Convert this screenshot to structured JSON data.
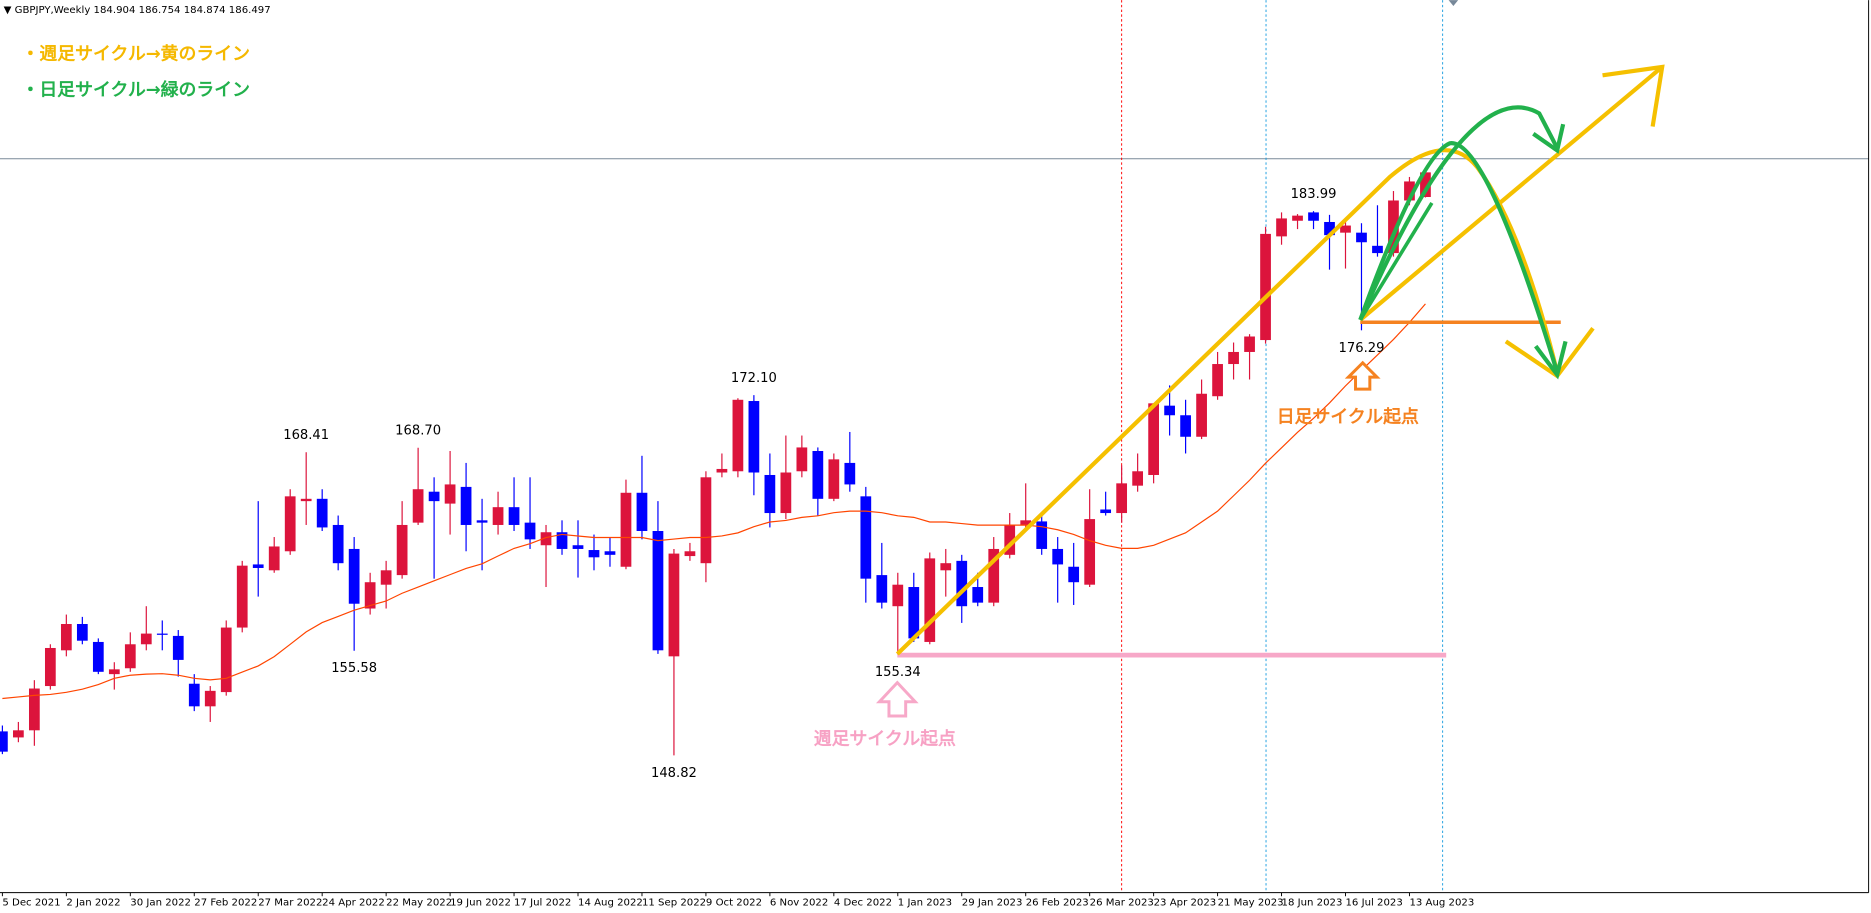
{
  "chart_data": {
    "type": "candlestick",
    "symbol": "GBPJPY,Weekly",
    "categories": [
      "5 Dec 2021",
      null,
      null,
      null,
      "2 Jan 2022",
      null,
      null,
      null,
      "30 Jan 2022",
      null,
      null,
      null,
      "27 Feb 2022",
      null,
      null,
      null,
      "27 Mar 2022",
      null,
      null,
      null,
      "24 Apr 2022",
      null,
      null,
      null,
      "22 May 2022",
      null,
      null,
      null,
      "19 Jun 2022",
      null,
      null,
      null,
      "17 Jul 2022",
      null,
      null,
      null,
      "14 Aug 2022",
      null,
      null,
      null,
      "11 Sep 2022",
      null,
      null,
      null,
      "9 Oct 2022",
      null,
      null,
      null,
      "6 Nov 2022",
      null,
      null,
      null,
      "4 Dec 2022",
      null,
      null,
      null,
      "1 Jan 2023",
      null,
      null,
      null,
      "29 Jan 2023",
      null,
      null,
      null,
      "26 Feb 2023",
      null,
      null,
      null,
      "26 Mar 2023",
      null,
      null,
      null,
      "23 Apr 2023",
      null,
      null,
      null,
      "21 May 2023",
      null,
      null,
      null,
      "18 Jun 2023",
      null,
      null,
      null,
      "16 Jul 2023",
      null,
      null,
      null,
      "13 Aug 2023",
      null
    ],
    "open": [
      150.37,
      149.98,
      150.44,
      153.3,
      155.61,
      157.31,
      156.15,
      154.07,
      154.45,
      156.0,
      156.69,
      156.54,
      153.45,
      151.99,
      152.91,
      157.08,
      161.16,
      160.78,
      162.01,
      165.25,
      165.4,
      163.71,
      162.16,
      158.31,
      159.85,
      160.47,
      163.86,
      165.86,
      165.09,
      166.17,
      164.01,
      163.71,
      164.86,
      163.86,
      162.4,
      163.24,
      162.4,
      162.09,
      162.01,
      161.01,
      165.79,
      163.32,
      155.22,
      161.7,
      161.24,
      167.1,
      167.18,
      171.72,
      166.94,
      164.48,
      167.18,
      168.49,
      165.4,
      167.72,
      165.56,
      160.47,
      158.46,
      159.7,
      156.15,
      160.78,
      161.39,
      159.7,
      158.69,
      161.78,
      163.71,
      163.94,
      162.16,
      161.01,
      159.85,
      164.71,
      164.48,
      166.25,
      166.94,
      171.42,
      170.8,
      169.41,
      172.03,
      174.11,
      174.89,
      175.66,
      182.36,
      183.37,
      183.91,
      183.29,
      182.6,
      182.6,
      181.75,
      181.28,
      184.68,
      184.904
    ],
    "high": [
      150.75,
      150.98,
      153.68,
      156.0,
      157.92,
      157.77,
      156.38,
      154.84,
      156.77,
      158.46,
      157.54,
      156.92,
      154.07,
      153.3,
      157.54,
      161.39,
      165.25,
      162.93,
      166.02,
      168.41,
      166.02,
      164.32,
      162.93,
      160.62,
      161.39,
      165.25,
      168.7,
      166.79,
      168.49,
      167.72,
      165.4,
      165.86,
      166.79,
      166.79,
      163.71,
      164.01,
      164.01,
      163.09,
      162.93,
      166.64,
      168.18,
      165.25,
      162.16,
      162.55,
      167.18,
      168.33,
      171.9,
      172.1,
      168.33,
      169.49,
      169.49,
      168.72,
      168.33,
      169.72,
      166.17,
      162.55,
      160.62,
      160.62,
      161.93,
      162.16,
      161.78,
      160.62,
      162.93,
      164.48,
      166.4,
      164.32,
      162.93,
      162.55,
      166.02,
      165.86,
      167.56,
      168.33,
      171.57,
      172.73,
      171.8,
      173.11,
      174.89,
      175.5,
      176.04,
      182.98,
      183.91,
      183.8,
      183.99,
      183.75,
      183.37,
      183.21,
      184.37,
      185.29,
      186.2,
      186.754
    ],
    "low": [
      148.9,
      149.67,
      149.44,
      153.07,
      155.22,
      156.0,
      154.07,
      153.07,
      154.22,
      155.61,
      155.61,
      153.91,
      151.68,
      150.98,
      152.68,
      156.77,
      159.08,
      160.62,
      161.78,
      163.71,
      163.32,
      160.78,
      155.58,
      157.92,
      158.31,
      160.24,
      163.71,
      160.24,
      163.09,
      162.01,
      160.78,
      163.09,
      163.32,
      162.16,
      159.7,
      161.78,
      160.31,
      160.78,
      161.01,
      160.85,
      162.78,
      155.38,
      148.82,
      161.39,
      160.01,
      166.79,
      166.79,
      165.63,
      163.55,
      164.09,
      166.79,
      164.32,
      165.25,
      165.86,
      158.69,
      158.31,
      155.34,
      156.15,
      156.0,
      159.08,
      157.38,
      158.46,
      158.46,
      161.55,
      163.32,
      161.78,
      158.69,
      158.54,
      159.7,
      164.32,
      163.86,
      165.86,
      166.4,
      169.49,
      168.33,
      169.26,
      171.8,
      173.11,
      173.11,
      175.43,
      181.82,
      182.83,
      182.83,
      180.21,
      180.28,
      176.29,
      181.05,
      181.05,
      184.37,
      184.874
    ],
    "close": [
      149.06,
      150.44,
      153.14,
      155.76,
      157.31,
      156.23,
      154.22,
      154.38,
      156.0,
      156.69,
      156.61,
      154.99,
      151.99,
      152.99,
      157.08,
      161.08,
      160.93,
      162.32,
      165.56,
      165.4,
      163.55,
      161.24,
      158.62,
      160.01,
      160.78,
      163.71,
      166.02,
      165.25,
      166.33,
      163.71,
      163.86,
      164.86,
      163.71,
      162.78,
      163.24,
      162.16,
      162.16,
      161.62,
      161.78,
      165.79,
      163.32,
      155.61,
      161.86,
      162.01,
      166.79,
      167.33,
      171.8,
      167.1,
      164.48,
      167.1,
      168.72,
      165.4,
      167.95,
      166.33,
      160.24,
      158.69,
      159.85,
      156.38,
      161.55,
      161.24,
      158.46,
      158.69,
      162.16,
      163.71,
      164.01,
      162.16,
      161.16,
      160.01,
      164.09,
      164.48,
      166.4,
      167.18,
      171.57,
      170.8,
      169.41,
      172.19,
      174.11,
      174.89,
      175.89,
      182.52,
      183.52,
      183.7,
      183.37,
      182.44,
      183.06,
      181.98,
      181.28,
      184.68,
      185.91,
      186.497
    ],
    "up_color": "#dc143c",
    "down_color": "#0000ff",
    "ylim": [
      139.95,
      197.63
    ],
    "moving_average": {
      "color": "#ff4500",
      "values": [
        152.5,
        152.6,
        152.7,
        152.76,
        152.9,
        153.1,
        153.4,
        153.8,
        154.0,
        154.07,
        154.1,
        154.0,
        153.8,
        153.7,
        153.8,
        154.2,
        154.6,
        155.2,
        156.0,
        156.8,
        157.4,
        157.8,
        158.2,
        158.5,
        158.8,
        159.3,
        159.7,
        160.1,
        160.5,
        160.9,
        161.2,
        161.7,
        162.2,
        162.5,
        162.9,
        163.1,
        163.0,
        162.9,
        162.9,
        162.9,
        162.9,
        162.7,
        162.8,
        162.9,
        162.9,
        163.0,
        163.2,
        163.6,
        163.9,
        164.0,
        164.2,
        164.3,
        164.5,
        164.6,
        164.6,
        164.5,
        164.3,
        164.2,
        163.9,
        163.9,
        163.8,
        163.7,
        163.7,
        163.7,
        163.7,
        163.6,
        163.4,
        163.1,
        162.7,
        162.4,
        162.2,
        162.2,
        162.4,
        162.8,
        163.2,
        163.9,
        164.6,
        165.6,
        166.6,
        167.7,
        168.7,
        169.7,
        170.6,
        171.6,
        172.7,
        173.7,
        174.7,
        175.7,
        176.8,
        178.0
      ]
    },
    "price_labels": {
      "values": [
        168.41,
        168.7,
        155.58,
        172.1,
        148.82,
        155.34,
        183.99,
        176.29
      ],
      "value_labels": [
        "168.41",
        "168.70",
        "155.58",
        "172.10",
        "148.82",
        "155.34",
        "183.99",
        "176.29"
      ]
    },
    "annotations": [
      "・週足サイクル→黄のライン",
      "・日足サイクル→緑のライン",
      "日足サイクル起点",
      "週足サイクル起点"
    ]
  }
}
